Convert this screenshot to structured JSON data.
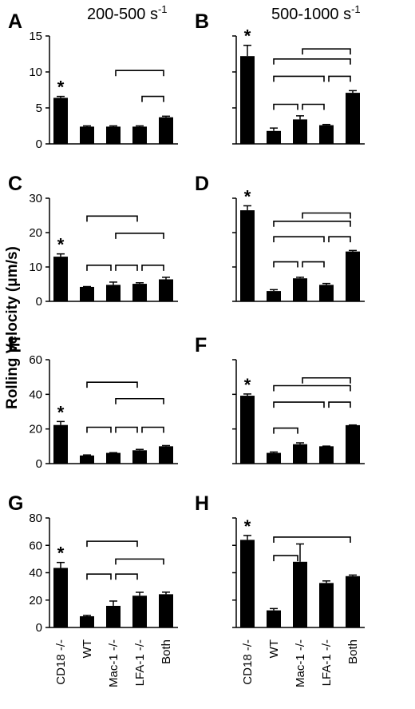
{
  "column_headers": [
    {
      "main": "200-500 s",
      "sup": "-1"
    },
    {
      "main": "500-1000 s",
      "sup": "-1"
    }
  ],
  "y_axis_label": "Rolling Velocity (μm/s)",
  "categories": [
    "CD18 -/-",
    "WT",
    "Mac-1 -/-",
    "LFA-1 -/-",
    "Both"
  ],
  "chart_data": [
    {
      "type": "bar",
      "panel": "A",
      "row": 0,
      "col": 0,
      "categories": [
        "CD18 -/-",
        "WT",
        "Mac-1 -/-",
        "LFA-1 -/-",
        "Both"
      ],
      "values": [
        6.4,
        2.4,
        2.4,
        2.4,
        3.7
      ],
      "errors": [
        0.2,
        0.1,
        0.1,
        0.1,
        0.15
      ],
      "ylim": [
        0,
        15
      ],
      "yticks": [
        0,
        5,
        10,
        15
      ],
      "stars": [
        0
      ],
      "brackets": [
        [
          2,
          4,
          10.2
        ],
        [
          3,
          4,
          6.6
        ]
      ]
    },
    {
      "type": "bar",
      "panel": "B",
      "row": 0,
      "col": 1,
      "categories": [
        "CD18 -/-",
        "WT",
        "Mac-1 -/-",
        "LFA-1 -/-",
        "Both"
      ],
      "values": [
        12.2,
        1.8,
        3.4,
        2.6,
        7.1
      ],
      "errors": [
        1.5,
        0.4,
        0.5,
        0.1,
        0.3
      ],
      "ylim": [
        0,
        15
      ],
      "yticks": [],
      "stars": [
        0
      ],
      "brackets": [
        [
          2,
          4,
          13.2
        ],
        [
          1,
          4,
          11.8
        ],
        [
          1,
          3,
          9.4
        ],
        [
          3,
          4,
          9.4
        ],
        [
          1,
          2,
          5.5
        ],
        [
          2,
          3,
          5.5
        ]
      ]
    },
    {
      "type": "bar",
      "panel": "C",
      "row": 1,
      "col": 0,
      "categories": [
        "CD18 -/-",
        "WT",
        "Mac-1 -/-",
        "LFA-1 -/-",
        "Both"
      ],
      "values": [
        13,
        4.2,
        4.8,
        5.1,
        6.4
      ],
      "errors": [
        0.8,
        0.1,
        0.8,
        0.3,
        0.6
      ],
      "ylim": [
        0,
        30
      ],
      "yticks": [
        0,
        10,
        20,
        30
      ],
      "stars": [
        0
      ],
      "brackets": [
        [
          1,
          3,
          24.8
        ],
        [
          2,
          4,
          19.8
        ],
        [
          1,
          2,
          10.5
        ],
        [
          2,
          3,
          10.5
        ],
        [
          3,
          4,
          10.5
        ]
      ]
    },
    {
      "type": "bar",
      "panel": "D",
      "row": 1,
      "col": 1,
      "categories": [
        "CD18 -/-",
        "WT",
        "Mac-1 -/-",
        "LFA-1 -/-",
        "Both"
      ],
      "values": [
        26.5,
        3,
        6.7,
        4.8,
        14.5
      ],
      "errors": [
        1.3,
        0.4,
        0.3,
        0.4,
        0.3
      ],
      "ylim": [
        0,
        30
      ],
      "yticks": [],
      "stars": [
        0
      ],
      "brackets": [
        [
          2,
          4,
          25.7
        ],
        [
          1,
          4,
          23.3
        ],
        [
          1,
          3,
          18.8
        ],
        [
          3,
          4,
          18.8
        ],
        [
          1,
          2,
          11.5
        ],
        [
          2,
          3,
          11.5
        ]
      ]
    },
    {
      "type": "bar",
      "panel": "E",
      "row": 2,
      "col": 0,
      "categories": [
        "CD18 -/-",
        "WT",
        "Mac-1 -/-",
        "LFA-1 -/-",
        "Both"
      ],
      "values": [
        22.3,
        4.7,
        6.2,
        7.7,
        10
      ],
      "errors": [
        2,
        0.3,
        0.1,
        0.5,
        0.4
      ],
      "ylim": [
        0,
        60
      ],
      "yticks": [
        0,
        20,
        40,
        60
      ],
      "stars": [
        0
      ],
      "brackets": [
        [
          1,
          3,
          47
        ],
        [
          2,
          4,
          37.5
        ],
        [
          1,
          2,
          21
        ],
        [
          2,
          3,
          21
        ],
        [
          3,
          4,
          21
        ]
      ]
    },
    {
      "type": "bar",
      "panel": "F",
      "row": 2,
      "col": 1,
      "categories": [
        "CD18 -/-",
        "WT",
        "Mac-1 -/-",
        "LFA-1 -/-",
        "Both"
      ],
      "values": [
        39.2,
        6.2,
        11.2,
        10,
        22.2
      ],
      "errors": [
        1,
        0.5,
        0.8,
        0.1,
        0.1
      ],
      "ylim": [
        0,
        60
      ],
      "yticks": [],
      "stars": [
        0
      ],
      "brackets": [
        [
          2,
          4,
          49.5
        ],
        [
          1,
          4,
          45
        ],
        [
          1,
          3,
          35.5
        ],
        [
          3,
          4,
          35.5
        ],
        [
          1,
          2,
          20.5
        ]
      ]
    },
    {
      "type": "bar",
      "panel": "G",
      "row": 3,
      "col": 0,
      "categories": [
        "CD18 -/-",
        "WT",
        "Mac-1 -/-",
        "LFA-1 -/-",
        "Both"
      ],
      "values": [
        43.5,
        8.2,
        15.8,
        23.2,
        24.3
      ],
      "errors": [
        4,
        0.6,
        3.5,
        2.5,
        1.5
      ],
      "ylim": [
        0,
        80
      ],
      "yticks": [
        0,
        20,
        40,
        60,
        80
      ],
      "stars": [
        0
      ],
      "brackets": [
        [
          1,
          3,
          63
        ],
        [
          2,
          4,
          50
        ],
        [
          1,
          2,
          39
        ],
        [
          2,
          3,
          39
        ]
      ]
    },
    {
      "type": "bar",
      "panel": "H",
      "row": 3,
      "col": 1,
      "categories": [
        "CD18 -/-",
        "WT",
        "Mac-1 -/-",
        "LFA-1 -/-",
        "Both"
      ],
      "values": [
        64,
        12.5,
        48,
        32.5,
        37.5
      ],
      "errors": [
        3.2,
        1.3,
        13,
        1.5,
        0.8
      ],
      "ylim": [
        0,
        80
      ],
      "yticks": [],
      "stars": [
        0
      ],
      "brackets": [
        [
          1,
          4,
          66
        ],
        [
          1,
          2,
          52.5
        ]
      ]
    }
  ]
}
